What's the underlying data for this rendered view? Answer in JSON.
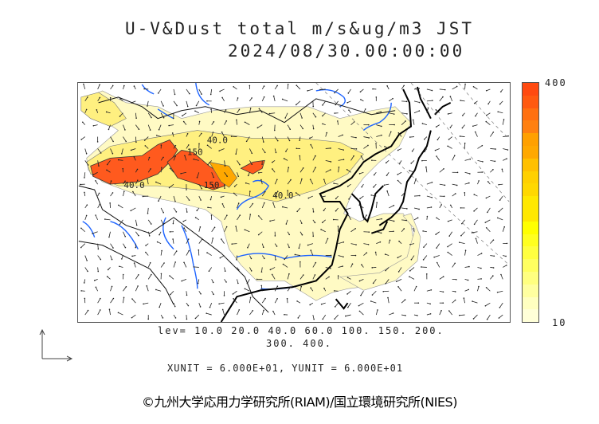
{
  "title": {
    "line1": "U-V&Dust total m/s&ug/m3 JST",
    "line2": "2024/08/30.00:00:00"
  },
  "colorbar": {
    "max_label": "400",
    "min_label": "10",
    "colors": [
      "#ff4a10",
      "#ff5a10",
      "#ff7010",
      "#ff8010",
      "#ffa000",
      "#ffa800",
      "#ffc000",
      "#ffd000",
      "#ffd800",
      "#ffe800",
      "#ffe800",
      "#ffff00",
      "#ffff20",
      "#ffff40",
      "#ffff60",
      "#ffff80",
      "#ffffa0",
      "#ffffc0",
      "#ffffd8"
    ]
  },
  "map": {
    "contour_labels": [
      "40.0",
      "150",
      "40.0",
      "150",
      "40.0"
    ]
  },
  "legend": {
    "levels_line1": "lev= 10.0 20.0 40.0 60.0 100. 150. 200.",
    "levels_line2": "300. 400.",
    "units": "XUNIT = 6.000E+01, YUNIT = 6.000E+01"
  },
  "copyright": "©九州大学応用力学研究所(RIAM)/国立環境研究所(NIES)"
}
